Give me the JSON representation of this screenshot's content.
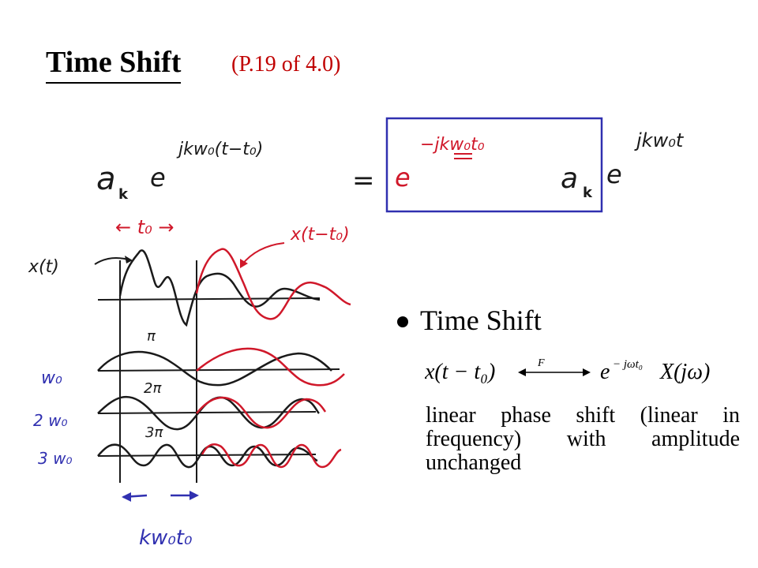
{
  "header": {
    "title": "Time Shift",
    "subtitle": "(P.19 of 4.0)"
  },
  "handwritten": {
    "lhs_coef": "a",
    "lhs_sub": "k",
    "lhs_base": "e",
    "lhs_exp": "jkw₀(t−t₀)",
    "equals": "=",
    "box_base": "e",
    "box_exp": "−jkw₀t₀",
    "box_coef": "a",
    "box_sub": "k",
    "rhs_base": "e",
    "rhs_exp": "jkw₀t",
    "t0_marker": "← t₀ →",
    "x_t_label": "x(t)",
    "x_shift_label": "x(t−t₀)",
    "pi1": "π",
    "pi2": "2π",
    "pi3": "3π",
    "w0": "w₀",
    "w2": "2 w₀",
    "w3": "3 w₀",
    "kw_label": "kw₀t₀"
  },
  "bullet": {
    "title": "Time Shift",
    "formula_lhs": "x(t − t₀)",
    "formula_op": "F",
    "formula_rhs_base": "e",
    "formula_rhs_exp": "− jωt₀",
    "formula_rhs_tail": "X(jω)",
    "description": "linear phase shift (linear in frequency) with amplitude unchanged"
  },
  "colors": {
    "ink_black": "#1a1a1a",
    "ink_red": "#d0182a",
    "ink_blue": "#3030b0",
    "subtitle": "#c00000"
  }
}
